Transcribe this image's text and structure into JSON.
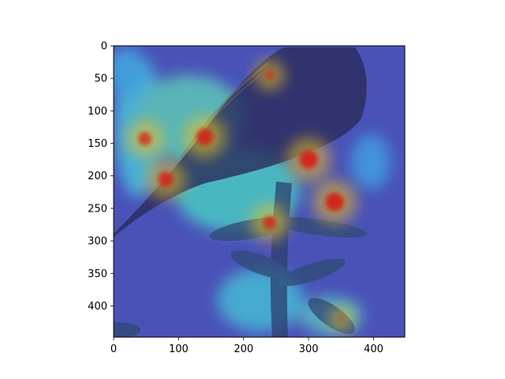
{
  "chart_data": {
    "type": "heatmap",
    "title": "",
    "xlabel": "",
    "ylabel": "",
    "description_of_content": "",
    "image_size": [
      448,
      448
    ],
    "xlim": [
      0,
      448
    ],
    "ylim": [
      448,
      0
    ],
    "x_ticks": [
      0,
      100,
      200,
      300,
      400
    ],
    "y_ticks": [
      0,
      50,
      100,
      150,
      200,
      250,
      300,
      350,
      400
    ],
    "x_tick_labels": [
      "0",
      "100",
      "200",
      "300",
      "400"
    ],
    "y_tick_labels": [
      "0",
      "50",
      "100",
      "150",
      "200",
      "250",
      "300",
      "350",
      "400"
    ],
    "grid": false,
    "colormap": "jet",
    "colors": {
      "background": "#4a52b8",
      "hot": "#d61a12",
      "warm": "#f2c21f",
      "mid": "#4ad9c6",
      "cool": "#3d6bd6",
      "subject": "#2a2c5c"
    },
    "hotspots": [
      {
        "x": 140,
        "y": 140,
        "value": 0.95
      },
      {
        "x": 80,
        "y": 205,
        "value": 0.9
      },
      {
        "x": 48,
        "y": 143,
        "value": 0.85
      },
      {
        "x": 300,
        "y": 175,
        "value": 1.0
      },
      {
        "x": 340,
        "y": 240,
        "value": 1.0
      },
      {
        "x": 240,
        "y": 272,
        "value": 0.85
      },
      {
        "x": 240,
        "y": 45,
        "value": 0.7
      },
      {
        "x": 350,
        "y": 420,
        "value": 0.55
      }
    ]
  }
}
